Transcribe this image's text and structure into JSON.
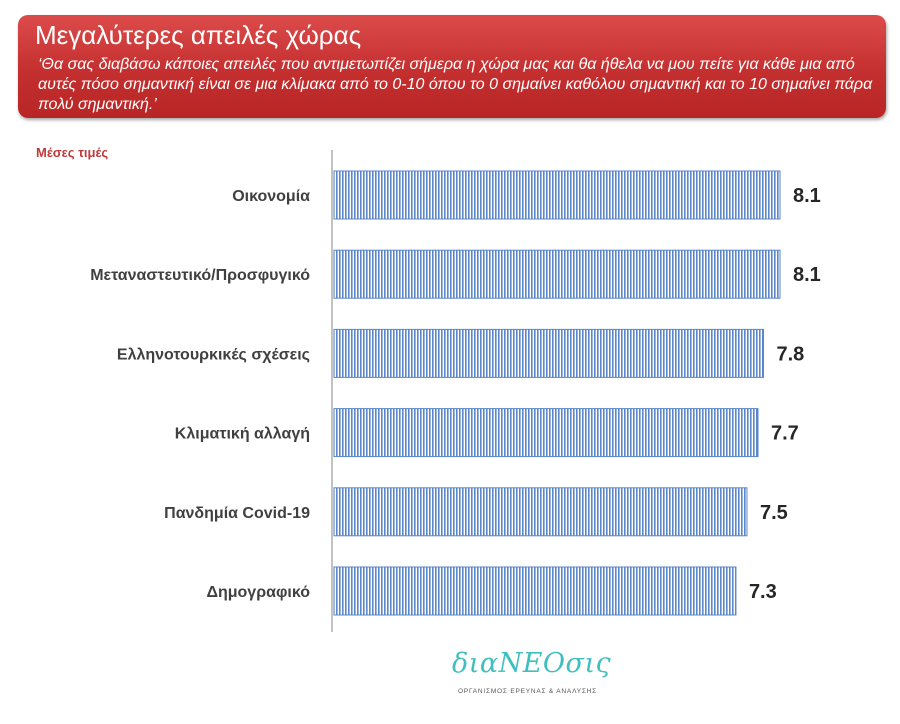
{
  "header": {
    "title": "Μεγαλύτερες απειλές χώρας",
    "question": "‘Θα σας διαβάσω κάποιες απειλές που αντιμετωπίζει σήμερα η χώρα μας και θα ήθελα να μου πείτε για κάθε μια από αυτές πόσο σημαντική είναι σε μια κλίμακα από το 0-10 όπου το 0 σημαίνει καθόλου σημαντική και το 10 σημαίνει πάρα πολύ σημαντική.’"
  },
  "subtitle": "Μέσες τιμές",
  "chart_data": {
    "type": "bar",
    "orientation": "horizontal",
    "categories": [
      "Οικονομία",
      "Μεταναστευτικό/Προσφυγικό",
      "Ελληνοτουρκικές σχέσεις",
      "Κλιματική αλλαγή",
      "Πανδημία Covid-19",
      "Δημογραφικό"
    ],
    "values": [
      8.1,
      8.1,
      7.8,
      7.7,
      7.5,
      7.3
    ],
    "value_labels": [
      "8.1",
      "8.1",
      "7.8",
      "7.7",
      "7.5",
      "7.3"
    ],
    "xlim": [
      0,
      8.1
    ],
    "grid": false,
    "bar_color": "#5b86c8"
  },
  "logo": {
    "name": "διαΝΕΟσις",
    "tagline": "ΟΡΓΑΝΙΣΜΟΣ ΕΡΕΥΝΑΣ & ΑΝΑΛΥΣΗΣ"
  }
}
